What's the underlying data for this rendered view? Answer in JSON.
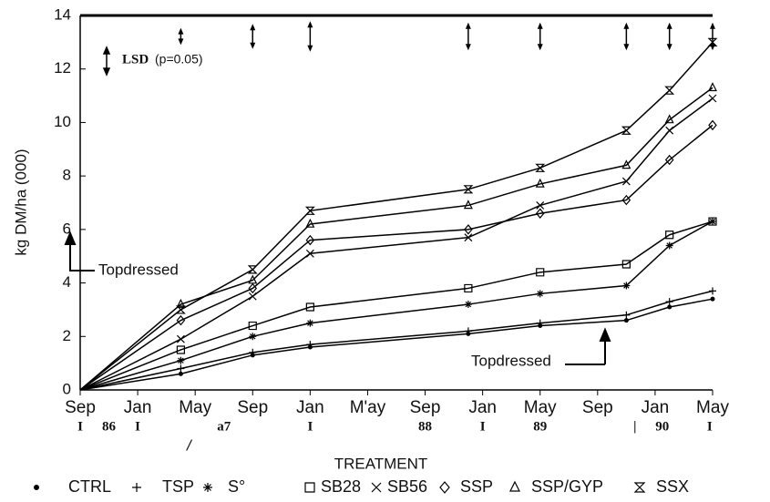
{
  "chart_data": {
    "type": "line",
    "y_label": "kg DM/ha (000)",
    "xlim": [
      0,
      44
    ],
    "x": [
      0,
      7,
      12,
      16,
      27,
      32,
      38,
      41,
      44
    ],
    "xticks": [
      {
        "value": 0,
        "label": "Sep"
      },
      {
        "value": 4,
        "label": "Jan"
      },
      {
        "value": 8,
        "label": "May"
      },
      {
        "value": 12,
        "label": "Sep"
      },
      {
        "value": 16,
        "label": "Jan"
      },
      {
        "value": 20,
        "label": "M'ay"
      },
      {
        "value": 24,
        "label": "Sep"
      },
      {
        "value": 28,
        "label": "Jan"
      },
      {
        "value": 32,
        "label": "May"
      },
      {
        "value": 36,
        "label": "Sep"
      },
      {
        "value": 40,
        "label": "Jan"
      },
      {
        "value": 44,
        "label": "May"
      }
    ],
    "year_ticks": [
      {
        "value": 0,
        "label": "I"
      },
      {
        "value": 2,
        "label": "86"
      },
      {
        "value": 4,
        "label": "I"
      },
      {
        "value": 10,
        "label": "a7"
      },
      {
        "value": 16,
        "label": "I"
      },
      {
        "value": 24,
        "label": "88"
      },
      {
        "value": 28,
        "label": "I"
      },
      {
        "value": 32,
        "label": "89"
      },
      {
        "value": 38.6,
        "label": "|"
      },
      {
        "value": 40.5,
        "label": "90"
      },
      {
        "value": 43.8,
        "label": "I"
      }
    ],
    "ylim": [
      0,
      14
    ],
    "yticks": [
      0,
      2,
      4,
      6,
      8,
      10,
      12,
      14
    ],
    "grid": false,
    "legend_title": "TREATMENT",
    "series": [
      {
        "name": "CTRL",
        "marker": "dot",
        "color": "#000000",
        "values": [
          0,
          0.6,
          1.3,
          1.6,
          2.1,
          2.4,
          2.6,
          3.1,
          3.4
        ]
      },
      {
        "name": "TSP",
        "marker": "plus",
        "color": "#000000",
        "values": [
          0,
          0.8,
          1.4,
          1.7,
          2.2,
          2.5,
          2.8,
          3.3,
          3.7
        ]
      },
      {
        "name": "S°",
        "marker": "star",
        "color": "#000000",
        "values": [
          0,
          1.1,
          2.0,
          2.5,
          3.2,
          3.6,
          3.9,
          5.4,
          6.3
        ]
      },
      {
        "name": "SB28",
        "marker": "square",
        "color": "#000000",
        "values": [
          0,
          1.5,
          2.4,
          3.1,
          3.8,
          4.4,
          4.7,
          5.8,
          6.3
        ]
      },
      {
        "name": "SB56",
        "marker": "cross",
        "color": "#000000",
        "values": [
          0,
          1.9,
          3.5,
          5.1,
          5.7,
          6.9,
          7.8,
          9.7,
          10.9
        ]
      },
      {
        "name": "SSP",
        "marker": "diamond",
        "color": "#000000",
        "values": [
          0,
          2.6,
          3.8,
          5.6,
          6.0,
          6.6,
          7.1,
          8.6,
          9.9
        ]
      },
      {
        "name": "SSP/GYP",
        "marker": "triangle",
        "color": "#000000",
        "values": [
          0,
          3.2,
          4.1,
          6.2,
          6.9,
          7.7,
          8.4,
          10.1,
          11.3
        ]
      },
      {
        "name": "SSX",
        "marker": "hourglass",
        "color": "#000000",
        "values": [
          0,
          3.0,
          4.5,
          6.7,
          7.5,
          8.3,
          9.7,
          11.2,
          13.0
        ]
      }
    ],
    "lsd": {
      "label": "LSD",
      "note": "(p=0.05)",
      "x": [
        7,
        12,
        16,
        27,
        32,
        38,
        41,
        44
      ],
      "values": [
        0.3,
        0.6,
        0.8,
        0.7,
        0.7,
        0.7,
        0.7,
        0.7
      ]
    },
    "annotations": [
      "Topdressed",
      "Topdressed",
      "/"
    ]
  }
}
